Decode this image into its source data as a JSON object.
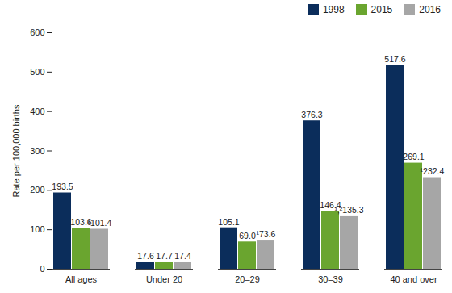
{
  "chart_data": {
    "type": "bar",
    "categories": [
      "All ages",
      "Under 20",
      "20–29",
      "30–39",
      "40 and over"
    ],
    "series": [
      {
        "name": "1998",
        "color": "#0b2d5b",
        "values": [
          193.5,
          17.6,
          105.1,
          376.3,
          517.6
        ]
      },
      {
        "name": "2015",
        "color": "#6aa52f",
        "values": [
          103.6,
          17.7,
          69.0,
          146.4,
          269.1
        ],
        "value_labels": [
          "103.6",
          "17.7",
          "69.0",
          "146.4",
          "269.1"
        ]
      },
      {
        "name": "2016",
        "color": "#a6a6a6",
        "values": [
          101.4,
          17.4,
          73.6,
          135.3,
          232.4
        ],
        "value_labels": [
          "¹101.4",
          "17.4",
          "¹73.6",
          "¹,²135.3",
          "¹232.4"
        ]
      }
    ],
    "y_label": "Rate per 100,000 births",
    "ylim": [
      0,
      600
    ],
    "yticks": [
      0,
      100,
      200,
      300,
      400,
      500,
      600
    ],
    "legend": "top-right",
    "data_labels": true
  }
}
